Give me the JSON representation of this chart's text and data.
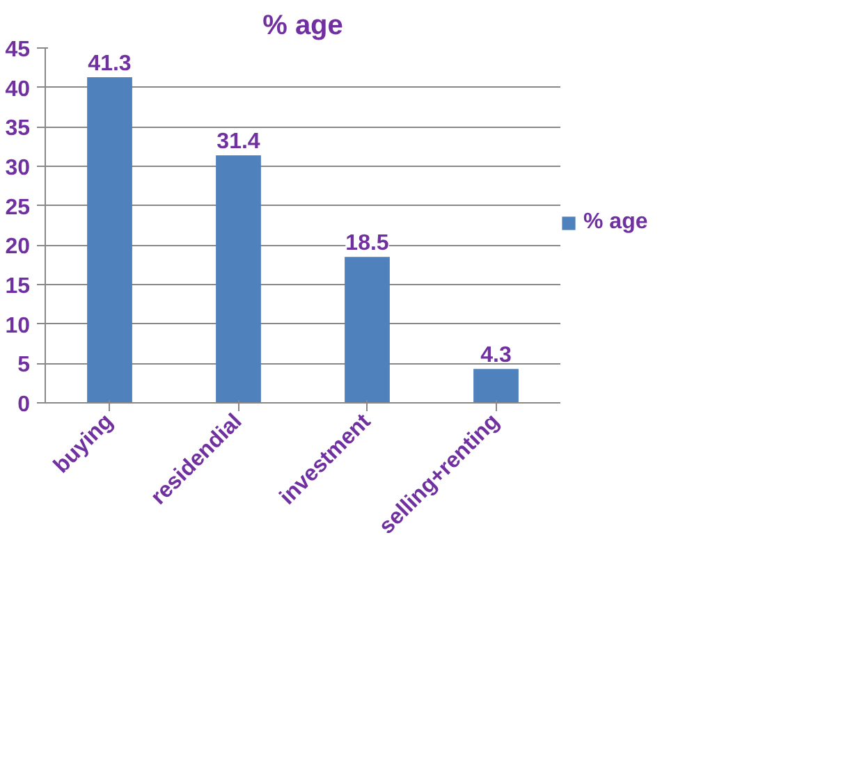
{
  "chart_data": {
    "type": "bar",
    "title": "% age",
    "categories": [
      "buying",
      "residendial",
      "investment",
      "selling+renting"
    ],
    "series": [
      {
        "name": "% age",
        "color": "#4f81bd",
        "values": [
          41.3,
          31.4,
          18.5,
          4.3
        ]
      }
    ],
    "ylim": [
      0,
      45
    ],
    "yticks": [
      0,
      5,
      10,
      15,
      20,
      25,
      30,
      35,
      40,
      45
    ],
    "grid": "y",
    "legend": "right",
    "data_labels": true
  }
}
